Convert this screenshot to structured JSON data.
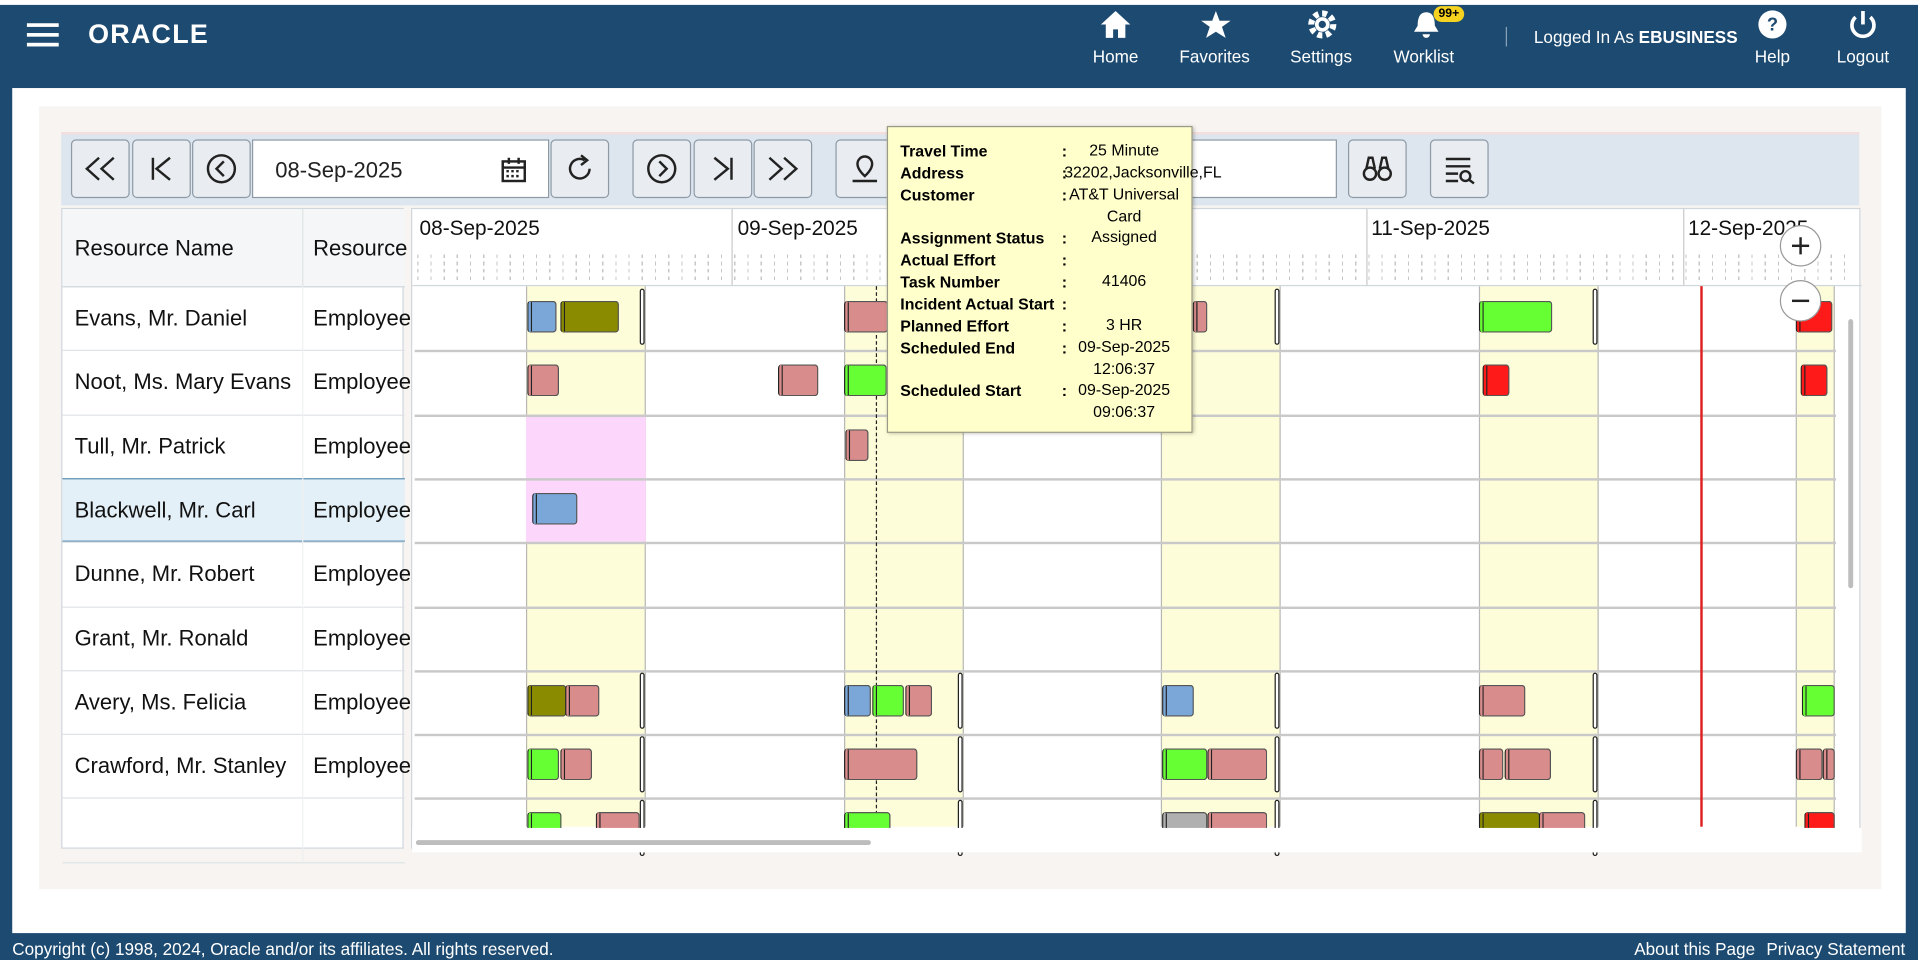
{
  "header": {
    "logo": "ORACLE",
    "nav": [
      "Home",
      "Favorites",
      "Settings",
      "Worklist"
    ],
    "badge": "99+",
    "logged_in_label": "Logged In As",
    "user": "EBUSINESS",
    "help": "Help",
    "logout": "Logout"
  },
  "toolbar": {
    "date": "08-Sep-2025"
  },
  "table": {
    "columns": [
      "Resource Name",
      "Resource"
    ],
    "rows": [
      [
        "Evans, Mr. Daniel",
        "Employee"
      ],
      [
        "Noot, Ms. Mary Evans",
        "Employee"
      ],
      [
        "Tull, Mr. Patrick",
        "Employee"
      ],
      [
        "Blackwell, Mr. Carl",
        "Employee"
      ],
      [
        "Dunne, Mr. Robert",
        "Employee"
      ],
      [
        "Grant, Mr. Ronald",
        "Employee"
      ],
      [
        "Avery, Ms. Felicia",
        "Employee"
      ],
      [
        "Crawford, Mr. Stanley",
        "Employee"
      ]
    ]
  },
  "gantt": {
    "dates": [
      "08-Sep-2025",
      "09-Sep-2025",
      "11-Sep-2025",
      "12-Sep-2025"
    ]
  },
  "tooltip": {
    "separator": ":",
    "rows": [
      {
        "label": "Travel Time",
        "value": "25 Minute"
      },
      {
        "label": "Address",
        "value": "32202,Jacksonville,FL"
      },
      {
        "label": "Customer",
        "value": "AT&T Universal Card"
      },
      {
        "label": "Assignment Status",
        "value": "Assigned"
      },
      {
        "label": "Actual Effort"
      },
      {
        "label": "Task Number",
        "value": "41406"
      },
      {
        "label": "Incident Actual Start"
      },
      {
        "label": "Planned Effort",
        "value": "3 HR"
      },
      {
        "label": "Scheduled End",
        "value": "09-Sep-2025 12:06:37"
      },
      {
        "label": "Scheduled Start",
        "value": "09-Sep-2025 09:06:37"
      }
    ]
  },
  "footer": {
    "copyright": "Copyright (c) 1998, 2024, Oracle and/or its affiliates. All rights reserved.",
    "links": [
      "About this Page",
      "Privacy Statement"
    ]
  }
}
